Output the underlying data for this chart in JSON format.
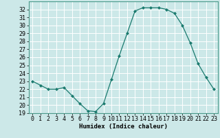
{
  "x": [
    0,
    1,
    2,
    3,
    4,
    5,
    6,
    7,
    8,
    9,
    10,
    11,
    12,
    13,
    14,
    15,
    16,
    17,
    18,
    19,
    20,
    21,
    22,
    23
  ],
  "y": [
    23.0,
    22.5,
    22.0,
    22.0,
    22.2,
    21.2,
    20.2,
    19.3,
    19.2,
    20.2,
    23.2,
    26.2,
    29.0,
    31.8,
    32.2,
    32.2,
    32.2,
    32.0,
    31.5,
    30.0,
    27.8,
    25.2,
    23.5,
    22.0
  ],
  "xlabel": "Humidex (Indice chaleur)",
  "ylim": [
    19,
    33
  ],
  "xlim": [
    -0.5,
    23.5
  ],
  "yticks": [
    19,
    20,
    21,
    22,
    23,
    24,
    25,
    26,
    27,
    28,
    29,
    30,
    31,
    32
  ],
  "xticks": [
    0,
    1,
    2,
    3,
    4,
    5,
    6,
    7,
    8,
    9,
    10,
    11,
    12,
    13,
    14,
    15,
    16,
    17,
    18,
    19,
    20,
    21,
    22,
    23
  ],
  "line_color": "#1a7a6e",
  "marker": "D",
  "marker_size": 2.0,
  "bg_color": "#cce8e8",
  "grid_color": "#ffffff",
  "label_fontsize": 6.5,
  "tick_fontsize": 6.0,
  "spine_color": "#4a9a8a"
}
